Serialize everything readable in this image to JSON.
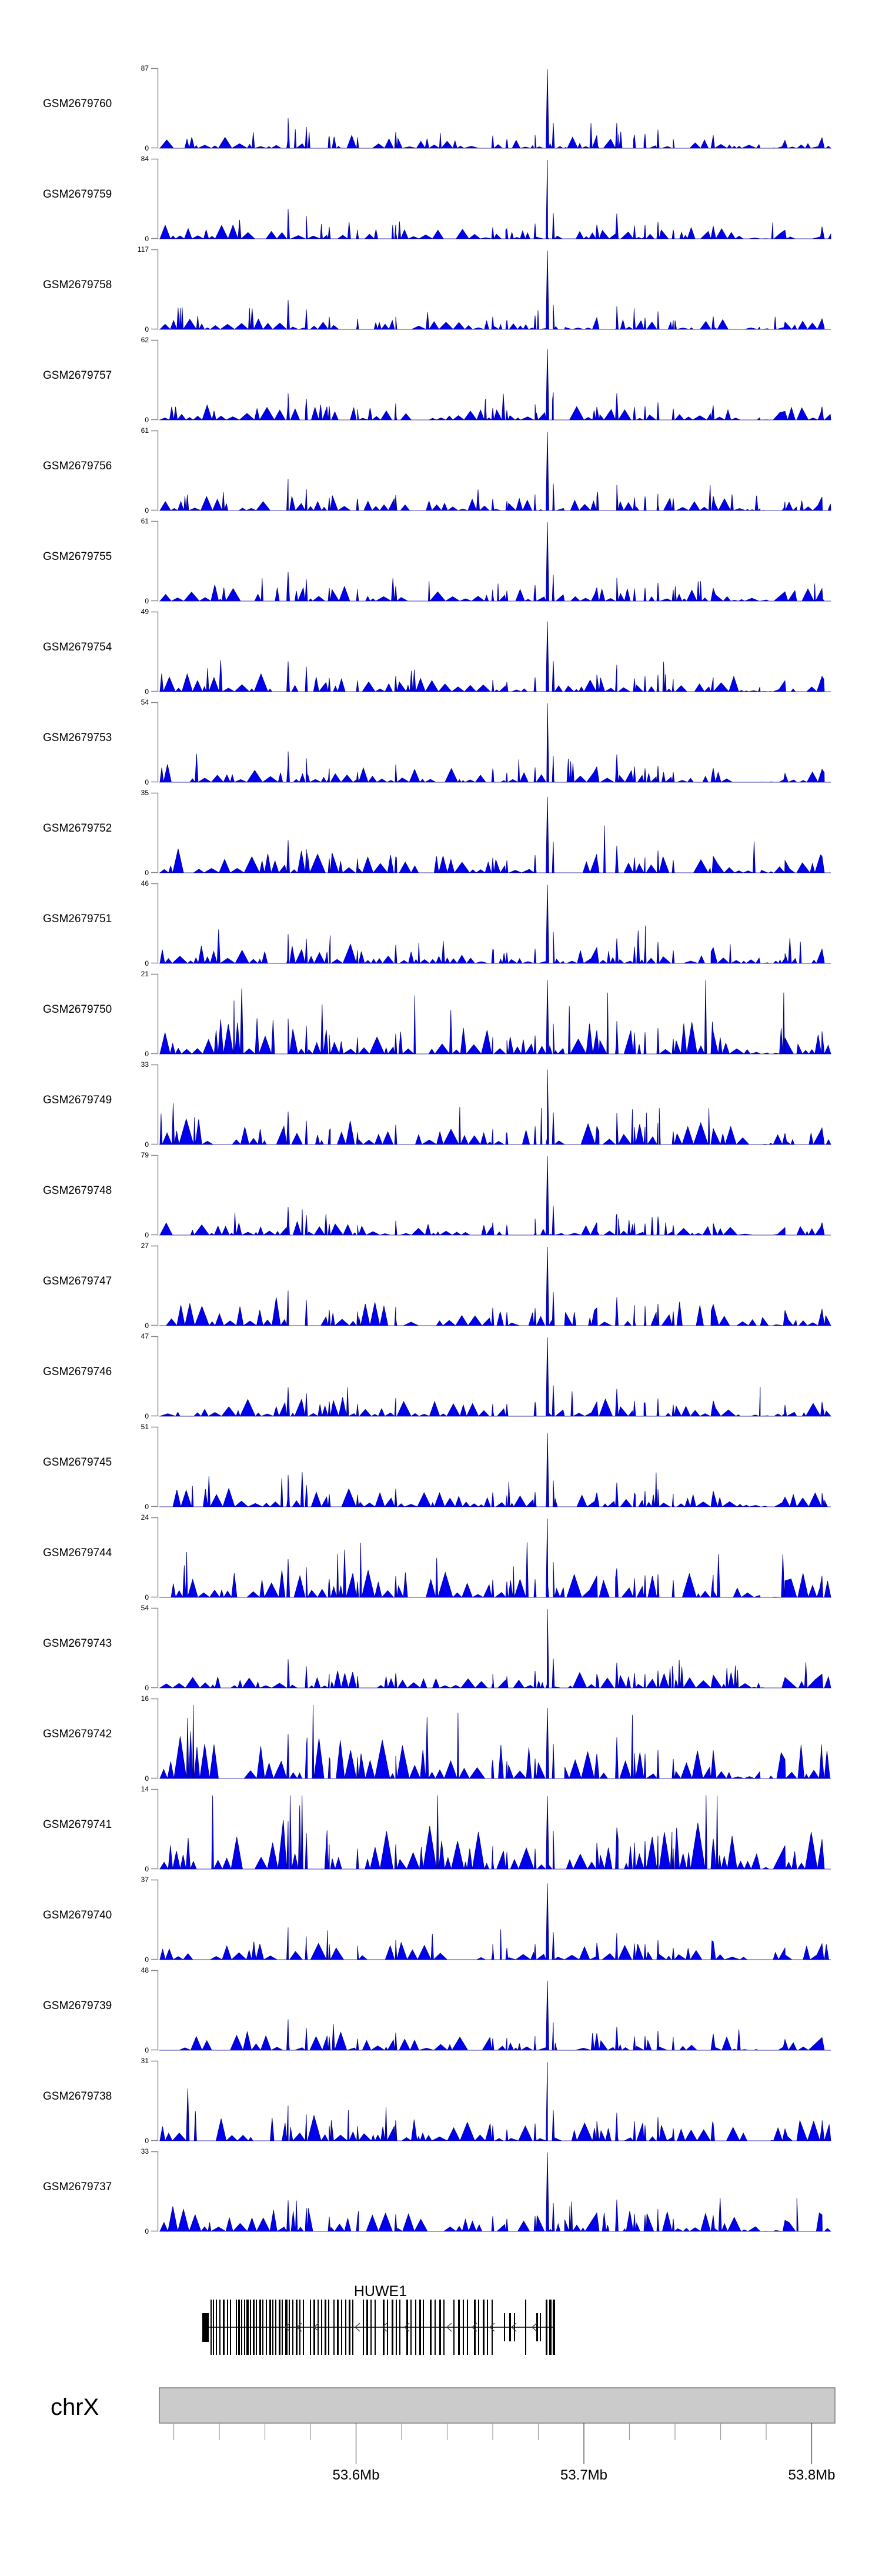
{
  "figure": {
    "background": "#ffffff",
    "kind": "genome coverage tracks (Gviz-style)"
  },
  "chart_data": {
    "type": "area",
    "title": "",
    "region": {
      "chromosome": "chrX",
      "start_mb": 53.514,
      "end_mb": 53.81,
      "unit": "Mb"
    },
    "legend": "none",
    "grid": "off",
    "y_zero_label": "0",
    "series_color": "#0000EE",
    "series_stroke": "#00008B",
    "axis_color": "#8a8a8a",
    "tracks": [
      {
        "name": "GSM2679760",
        "ymax": 87,
        "ymin": 0
      },
      {
        "name": "GSM2679759",
        "ymax": 84,
        "ymin": 0
      },
      {
        "name": "GSM2679758",
        "ymax": 117,
        "ymin": 0
      },
      {
        "name": "GSM2679757",
        "ymax": 62,
        "ymin": 0
      },
      {
        "name": "GSM2679756",
        "ymax": 61,
        "ymin": 0
      },
      {
        "name": "GSM2679755",
        "ymax": 61,
        "ymin": 0
      },
      {
        "name": "GSM2679754",
        "ymax": 49,
        "ymin": 0
      },
      {
        "name": "GSM2679753",
        "ymax": 54,
        "ymin": 0
      },
      {
        "name": "GSM2679752",
        "ymax": 35,
        "ymin": 0
      },
      {
        "name": "GSM2679751",
        "ymax": 46,
        "ymin": 0
      },
      {
        "name": "GSM2679750",
        "ymax": 21,
        "ymin": 0
      },
      {
        "name": "GSM2679749",
        "ymax": 33,
        "ymin": 0
      },
      {
        "name": "GSM2679748",
        "ymax": 79,
        "ymin": 0
      },
      {
        "name": "GSM2679747",
        "ymax": 27,
        "ymin": 0
      },
      {
        "name": "GSM2679746",
        "ymax": 47,
        "ymin": 0
      },
      {
        "name": "GSM2679745",
        "ymax": 51,
        "ymin": 0
      },
      {
        "name": "GSM2679744",
        "ymax": 24,
        "ymin": 0
      },
      {
        "name": "GSM2679743",
        "ymax": 54,
        "ymin": 0
      },
      {
        "name": "GSM2679742",
        "ymax": 16,
        "ymin": 0
      },
      {
        "name": "GSM2679741",
        "ymax": 14,
        "ymin": 0
      },
      {
        "name": "GSM2679740",
        "ymax": 37,
        "ymin": 0
      },
      {
        "name": "GSM2679739",
        "ymax": 48,
        "ymin": 0
      },
      {
        "name": "GSM2679738",
        "ymax": 31,
        "ymin": 0
      },
      {
        "name": "GSM2679737",
        "ymax": 33,
        "ymin": 0
      }
    ],
    "x_axis": {
      "unit": "Mb",
      "minor_tick_interval_mb": 0.02,
      "minor_ticks_mb": [
        53.52,
        53.54,
        53.56,
        53.58,
        53.6,
        53.62,
        53.64,
        53.66,
        53.68,
        53.7,
        53.72,
        53.74,
        53.76,
        53.78,
        53.8
      ],
      "major_ticks": [
        {
          "label": "53.6Mb",
          "mb": 53.6
        },
        {
          "label": "53.7Mb",
          "mb": 53.7
        },
        {
          "label": "53.8Mb",
          "mb": 53.8
        }
      ]
    },
    "shared_peaks": [
      [
        490,
        5,
        0.28,
        0.5,
        "sym"
      ],
      [
        521,
        4,
        0.2,
        0.45,
        "sym"
      ],
      [
        560,
        4,
        0.1,
        0.35,
        "sym"
      ],
      [
        608,
        4,
        0.08,
        0.35,
        "sym"
      ],
      [
        673,
        4,
        0.13,
        0.4,
        "sym"
      ],
      [
        838,
        4,
        0.1,
        0.35,
        "sym"
      ],
      [
        862,
        4,
        0.08,
        0.3,
        "sym"
      ],
      [
        910,
        4,
        0.15,
        0.25,
        "sym"
      ],
      [
        931,
        5,
        0.96,
        0.0,
        "sym"
      ],
      [
        941,
        4,
        0.3,
        0.35,
        "sym"
      ],
      [
        1015,
        55,
        0.1,
        0.5,
        "wedgeL"
      ],
      [
        1049,
        5,
        0.22,
        0.55,
        "sym"
      ],
      [
        1079,
        4,
        0.1,
        0.45,
        "sym"
      ],
      [
        1097,
        4,
        0.1,
        0.45,
        "sym"
      ],
      [
        1119,
        4,
        0.15,
        0.45,
        "sym"
      ],
      [
        1145,
        4,
        0.08,
        0.35,
        "sym"
      ],
      [
        1213,
        80,
        0.08,
        0.55,
        "declineR"
      ],
      [
        1335,
        40,
        0.04,
        0.45,
        "sym"
      ],
      [
        1398,
        90,
        0.08,
        0.5,
        "wedgeL"
      ]
    ],
    "noise_envelope": [
      [
        271,
        430,
        1.0
      ],
      [
        430,
        600,
        0.95
      ],
      [
        600,
        760,
        0.8
      ],
      [
        760,
        905,
        0.7
      ],
      [
        905,
        958,
        0.45
      ],
      [
        958,
        1030,
        0.85
      ],
      [
        1030,
        1140,
        0.8
      ],
      [
        1140,
        1240,
        0.85
      ],
      [
        1240,
        1292,
        0.3
      ],
      [
        1292,
        1312,
        0.06
      ],
      [
        1312,
        1413,
        0.75
      ]
    ]
  },
  "gene_track": {
    "gene_label": "HUWE1",
    "strand": "-",
    "gene_start_mb": 53.533,
    "gene_end_mb": 53.687,
    "line_color": "#000000",
    "exon_color": "#000000",
    "arrows_x": [
      485,
      505,
      534,
      604,
      650,
      688,
      760,
      803,
      833,
      870,
      905
    ],
    "exons": [
      [
        344,
        11,
        "b"
      ],
      [
        358,
        2,
        "t"
      ],
      [
        362,
        2,
        "t"
      ],
      [
        367,
        2,
        "t"
      ],
      [
        373,
        2,
        "t"
      ],
      [
        379,
        3,
        "t"
      ],
      [
        386,
        2,
        "t"
      ],
      [
        391,
        2,
        "t"
      ],
      [
        401,
        2,
        "t"
      ],
      [
        405,
        3,
        "t"
      ],
      [
        410,
        2,
        "t"
      ],
      [
        415,
        2,
        "t"
      ],
      [
        419,
        4,
        "t"
      ],
      [
        425,
        2,
        "t"
      ],
      [
        430,
        3,
        "t"
      ],
      [
        435,
        2,
        "t"
      ],
      [
        441,
        3,
        "t"
      ],
      [
        446,
        2,
        "t"
      ],
      [
        452,
        2,
        "t"
      ],
      [
        458,
        3,
        "t"
      ],
      [
        463,
        2,
        "t"
      ],
      [
        468,
        2,
        "t"
      ],
      [
        474,
        3,
        "t"
      ],
      [
        479,
        2,
        "t"
      ],
      [
        485,
        4,
        "t"
      ],
      [
        491,
        2,
        "t"
      ],
      [
        497,
        2,
        "t"
      ],
      [
        503,
        3,
        "t"
      ],
      [
        509,
        2,
        "t"
      ],
      [
        515,
        2,
        "t"
      ],
      [
        527,
        2,
        "t"
      ],
      [
        533,
        3,
        "t"
      ],
      [
        540,
        2,
        "t"
      ],
      [
        546,
        2,
        "t"
      ],
      [
        552,
        3,
        "t"
      ],
      [
        558,
        2,
        "t"
      ],
      [
        567,
        2,
        "t"
      ],
      [
        573,
        3,
        "t"
      ],
      [
        580,
        2,
        "t"
      ],
      [
        587,
        2,
        "t"
      ],
      [
        593,
        3,
        "t"
      ],
      [
        599,
        2,
        "t"
      ],
      [
        617,
        2,
        "t"
      ],
      [
        623,
        3,
        "t"
      ],
      [
        630,
        2,
        "t"
      ],
      [
        637,
        2,
        "t"
      ],
      [
        651,
        3,
        "t"
      ],
      [
        658,
        2,
        "t"
      ],
      [
        666,
        3,
        "t"
      ],
      [
        673,
        2,
        "t"
      ],
      [
        679,
        2,
        "t"
      ],
      [
        691,
        3,
        "t"
      ],
      [
        698,
        2,
        "t"
      ],
      [
        706,
        2,
        "t"
      ],
      [
        713,
        3,
        "t"
      ],
      [
        719,
        2,
        "t"
      ],
      [
        731,
        3,
        "t"
      ],
      [
        739,
        2,
        "t"
      ],
      [
        747,
        3,
        "t"
      ],
      [
        754,
        2,
        "t"
      ],
      [
        771,
        2,
        "t"
      ],
      [
        779,
        3,
        "t"
      ],
      [
        787,
        2,
        "t"
      ],
      [
        794,
        2,
        "t"
      ],
      [
        806,
        3,
        "t"
      ],
      [
        813,
        2,
        "t"
      ],
      [
        821,
        3,
        "t"
      ],
      [
        828,
        2,
        "t"
      ],
      [
        836,
        2,
        "t"
      ],
      [
        857,
        2,
        "s"
      ],
      [
        866,
        3,
        "s"
      ],
      [
        874,
        2,
        "s"
      ],
      [
        893,
        2,
        "t"
      ],
      [
        912,
        3,
        "s"
      ],
      [
        918,
        2,
        "s"
      ],
      [
        928,
        3,
        "t"
      ],
      [
        934,
        4,
        "t"
      ],
      [
        940,
        4,
        "t"
      ]
    ]
  },
  "ideogram": {
    "chromosome": "chrX",
    "fill": "#CBCBCB",
    "border": "#7F7F7F",
    "bands_visible": false
  }
}
